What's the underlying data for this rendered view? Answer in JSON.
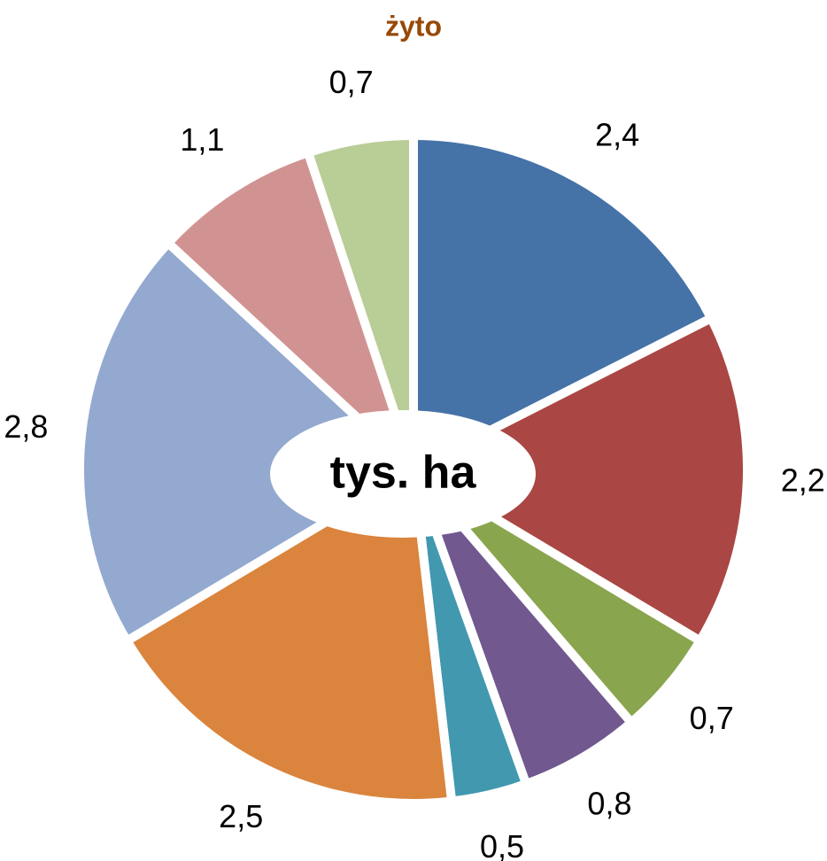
{
  "chart_data": {
    "type": "pie",
    "title": "żyto",
    "center_label": "tys. ha",
    "values": [
      2.4,
      2.2,
      0.7,
      0.8,
      0.5,
      2.5,
      2.8,
      1.1,
      0.7
    ],
    "value_labels": [
      "2,4",
      "2,2",
      "0,7",
      "0,8",
      "0,5",
      "2,5",
      "2,8",
      "1,1",
      "0,7"
    ],
    "colors": [
      "#4572a7",
      "#aa4643",
      "#89a54e",
      "#71588f",
      "#4198af",
      "#db843d",
      "#93a9cf",
      "#d19392",
      "#b9cd96"
    ]
  }
}
